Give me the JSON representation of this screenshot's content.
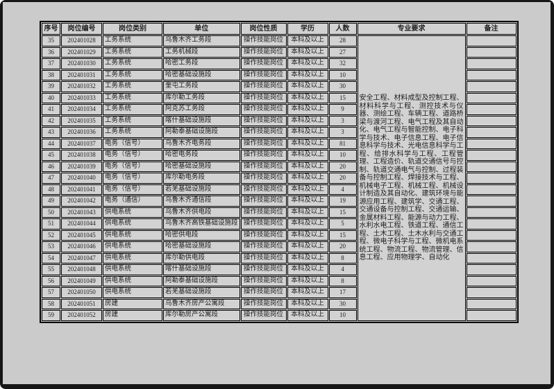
{
  "colors": {
    "frame": "#161616",
    "page_background": "#cbcbcb",
    "cell_background": "#d2d2d2",
    "border": "#000000",
    "text": "#1d1d1d"
  },
  "document": {
    "headers": [
      "序号",
      "岗位编号",
      "岗位类别",
      "单位",
      "岗位性质",
      "学历",
      "人数",
      "专业要求",
      "备注"
    ],
    "rows": [
      [
        "35",
        "202401028",
        "工务系统",
        "乌鲁木齐工务段",
        "操作技能岗位",
        "本科及以上",
        "28",
        ""
      ],
      [
        "36",
        "202401029",
        "工务系统",
        "工务机械段",
        "操作技能岗位",
        "本科及以上",
        "27",
        ""
      ],
      [
        "37",
        "202401030",
        "工务系统",
        "哈密工务段",
        "操作技能岗位",
        "本科及以上",
        "32",
        ""
      ],
      [
        "38",
        "202401031",
        "工务系统",
        "哈密基础设施段",
        "操作技能岗位",
        "本科及以上",
        "10",
        ""
      ],
      [
        "39",
        "202401032",
        "工务系统",
        "奎屯工务段",
        "操作技能岗位",
        "本科及以上",
        "30",
        ""
      ],
      [
        "40",
        "202401033",
        "工务系统",
        "库尔勒工务段",
        "操作技能岗位",
        "本科及以上",
        "15",
        ""
      ],
      [
        "41",
        "202401034",
        "工务系统",
        "阿克苏工务段",
        "操作技能岗位",
        "本科及以上",
        "9",
        ""
      ],
      [
        "42",
        "202401035",
        "工务系统",
        "喀什基础设施段",
        "操作技能岗位",
        "本科及以上",
        "3",
        ""
      ],
      [
        "43",
        "202401036",
        "工务系统",
        "阿勒泰基础设施段",
        "操作技能岗位",
        "本科及以上",
        "3",
        ""
      ],
      [
        "44",
        "202401037",
        "电务（信号）",
        "乌鲁木齐电务段",
        "操作技能岗位",
        "本科及以上",
        "81",
        ""
      ],
      [
        "45",
        "202401038",
        "电务（信号）",
        "哈密电务段",
        "操作技能岗位",
        "本科及以上",
        "10",
        ""
      ],
      [
        "46",
        "202401039",
        "电务（信号）",
        "哈密基础设施段",
        "操作技能岗位",
        "本科及以上",
        "20",
        ""
      ],
      [
        "47",
        "202401040",
        "电务（信号）",
        "库尔勒电务段",
        "操作技能岗位",
        "本科及以上",
        "20",
        ""
      ],
      [
        "48",
        "202401041",
        "电务（信号）",
        "若羌基础设施段",
        "操作技能岗位",
        "本科及以上",
        "4",
        ""
      ],
      [
        "49",
        "202401042",
        "电务（通信）",
        "乌鲁木齐通信段",
        "操作技能岗位",
        "本科及以上",
        "19",
        ""
      ],
      [
        "50",
        "202401043",
        "供电系统",
        "乌鲁木齐供电段",
        "操作技能岗位",
        "本科及以上",
        "15",
        ""
      ],
      [
        "51",
        "202401044",
        "供电系统",
        "乌鲁木齐高铁基础设施段",
        "操作技能岗位",
        "本科及以上",
        "5",
        ""
      ],
      [
        "52",
        "202401045",
        "供电系统",
        "哈密供电段",
        "操作技能岗位",
        "本科及以上",
        "15",
        ""
      ],
      [
        "53",
        "202401046",
        "供电系统",
        "哈密基础设施段",
        "操作技能岗位",
        "本科及以上",
        "20",
        ""
      ],
      [
        "54",
        "202401047",
        "供电系统",
        "库尔勒供电段",
        "操作技能岗位",
        "本科及以上",
        "8",
        ""
      ],
      [
        "55",
        "202401048",
        "供电系统",
        "喀什基础设施段",
        "操作技能岗位",
        "本科及以上",
        "4",
        ""
      ],
      [
        "56",
        "202401049",
        "供电系统",
        "阿勒泰基础设施段",
        "操作技能岗位",
        "本科及以上",
        "8",
        ""
      ],
      [
        "57",
        "202401050",
        "供电系统",
        "若羌基础设施段",
        "操作技能岗位",
        "本科及以上",
        "17",
        ""
      ],
      [
        "58",
        "202401051",
        "房建",
        "乌鲁木齐房产公寓段",
        "操作技能岗位",
        "本科及以上",
        "30",
        ""
      ],
      [
        "59",
        "202401052",
        "房建",
        "库尔勒房产公寓段",
        "操作技能岗位",
        "本科及以上",
        "10",
        ""
      ]
    ],
    "major_requirements": "安全工程、材料成型及控制工程、材料科学与工程、测控技术与仪器、测绘工程、车辆工程、道路桥梁与渡河工程、电气工程及其自动化、电气工程与智能控制、电子科学与技术、电子信息工程、电子信息科学与技术、光电信息科学与工程、给排水科学与工程、工程管理、工程造价、轨道交通信号与控制、轨道交通电气与控制、过程装备与控制工程、焊接技术与工程、机械电子工程、机械工程、机械设计制造及其自动化、建筑环境与能源应用工程、建筑学、交通工程、交通设备与控制工程、交通运输、金属材料工程、能源与动力工程、水利水电工程、铁道工程、通信工程、土木工程、土木水利与交通工程、微电子科学与工程、微机电系统工程、物流工程、物流管理、信息工程、应用物理学、自动化"
  }
}
